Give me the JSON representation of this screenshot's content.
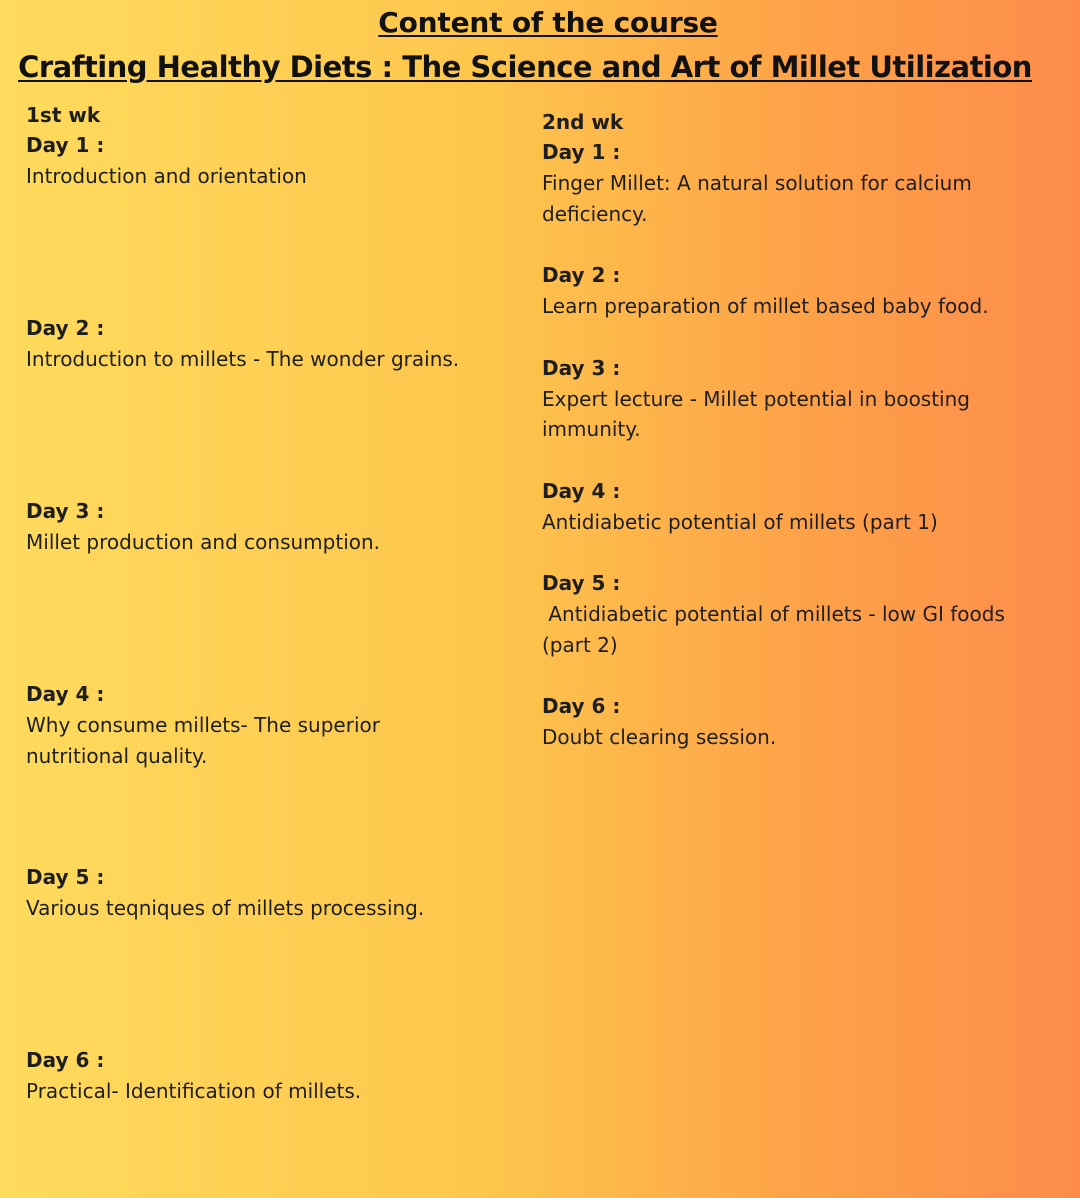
{
  "header": {
    "title": " Content of the course",
    "subtitle": "Crafting Healthy Diets : The Science and Art of Millet Utilization"
  },
  "week1": {
    "label": "1st wk",
    "days": [
      {
        "label": "Day 1 :",
        "lines": [
          "Introduction and orientation"
        ]
      },
      {
        "label": "Day 2 :",
        "lines": [
          "Introduction to millets - The wonder grains."
        ]
      },
      {
        "label": "Day 3 :",
        "lines": [
          "Millet production and consumption."
        ]
      },
      {
        "label": "Day 4 :",
        "lines": [
          "Why consume millets- The superior",
          "nutritional quality."
        ]
      },
      {
        "label": "Day 5 :",
        "lines": [
          "Various teqniques of millets processing."
        ]
      },
      {
        "label": "Day 6 :",
        "lines": [
          "Practical- Identification of millets."
        ]
      }
    ]
  },
  "week2": {
    "label": "2nd wk",
    "days": [
      {
        "label": "Day 1 :",
        "lines": [
          "Finger Millet: A natural solution for calcium",
          "deficiency."
        ]
      },
      {
        "label": "Day 2 :",
        "lines": [
          "Learn preparation of millet based baby food."
        ]
      },
      {
        "label": "Day 3 :",
        "lines": [
          "Expert lecture - Millet potential in boosting",
          "immunity."
        ]
      },
      {
        "label": "Day 4 :",
        "lines": [
          "Antidiabetic potential of millets (part 1)"
        ]
      },
      {
        "label": "Day 5 :",
        "lines": [
          " Antidiabetic potential of millets - low GI foods",
          "(part 2)"
        ]
      },
      {
        "label": "Day 6 :",
        "lines": [
          "Doubt clearing session."
        ]
      }
    ]
  }
}
